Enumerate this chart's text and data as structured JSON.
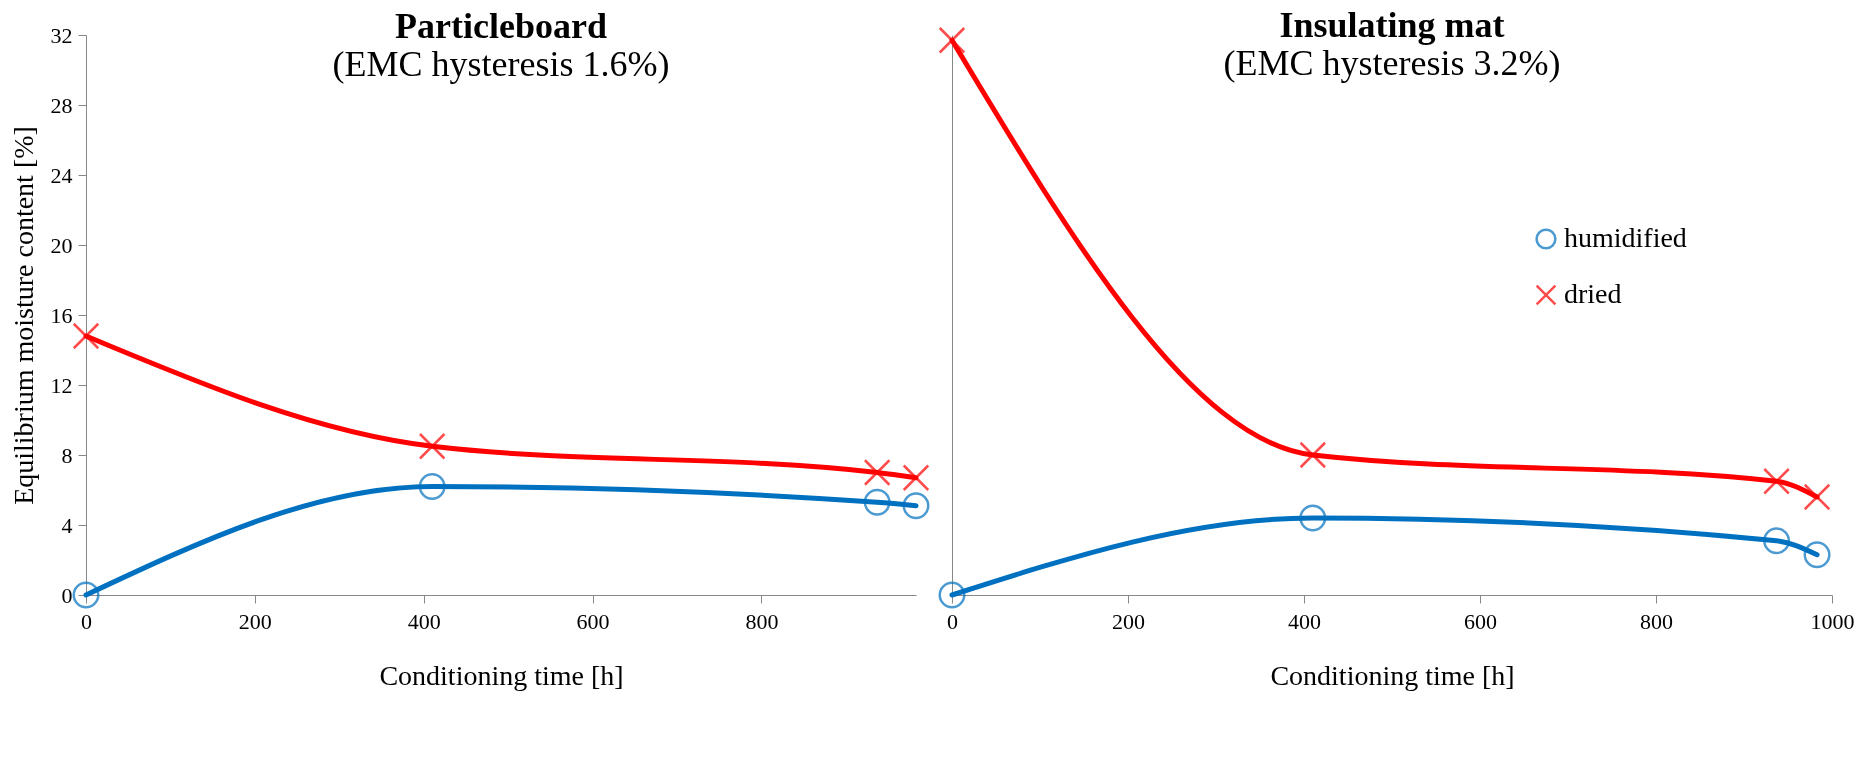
{
  "chart_data": [
    {
      "type": "line",
      "title": "Particleboard",
      "subtitle": "(EMC hysteresis 1.6%)",
      "xlabel": "Conditioning time [h]",
      "ylabel": "Equilibrium moisture content [%]",
      "x": [
        0,
        410,
        937,
        983
      ],
      "xlim": [
        0,
        983
      ],
      "xticks": [
        0,
        200,
        400,
        600,
        800
      ],
      "ylim": [
        0,
        32
      ],
      "yticks": [
        0,
        4,
        8,
        12,
        16,
        20,
        24,
        28,
        32
      ],
      "grid": false,
      "legend": false,
      "series": [
        {
          "color": "#0070c0",
          "marker": "circle",
          "values": [
            0,
            6.2,
            5.3,
            5.1
          ]
        },
        {
          "color": "#ff0000",
          "marker": "cross",
          "values": [
            14.8,
            8.5,
            7.0,
            6.7
          ]
        }
      ]
    },
    {
      "type": "line",
      "title": "Insulating mat",
      "subtitle": "(EMC hysteresis 3.2%)",
      "xlabel": "Conditioning time [h]",
      "x": [
        0,
        410,
        937,
        983
      ],
      "xlim": [
        0,
        1000
      ],
      "xticks": [
        0,
        200,
        400,
        600,
        800,
        1000
      ],
      "ylim": [
        0,
        32
      ],
      "yticks": [
        0,
        4,
        8,
        12,
        16,
        20,
        24,
        28,
        32
      ],
      "tick_labels": "x",
      "grid": false,
      "legend": "right",
      "series": [
        {
          "name": "humidified",
          "color": "#0070c0",
          "marker": "circle",
          "values": [
            0,
            4.4,
            3.1,
            2.3
          ]
        },
        {
          "name": "dried",
          "color": "#ff0000",
          "marker": "cross",
          "values": [
            31.7,
            8.0,
            6.5,
            5.6
          ]
        }
      ]
    }
  ]
}
